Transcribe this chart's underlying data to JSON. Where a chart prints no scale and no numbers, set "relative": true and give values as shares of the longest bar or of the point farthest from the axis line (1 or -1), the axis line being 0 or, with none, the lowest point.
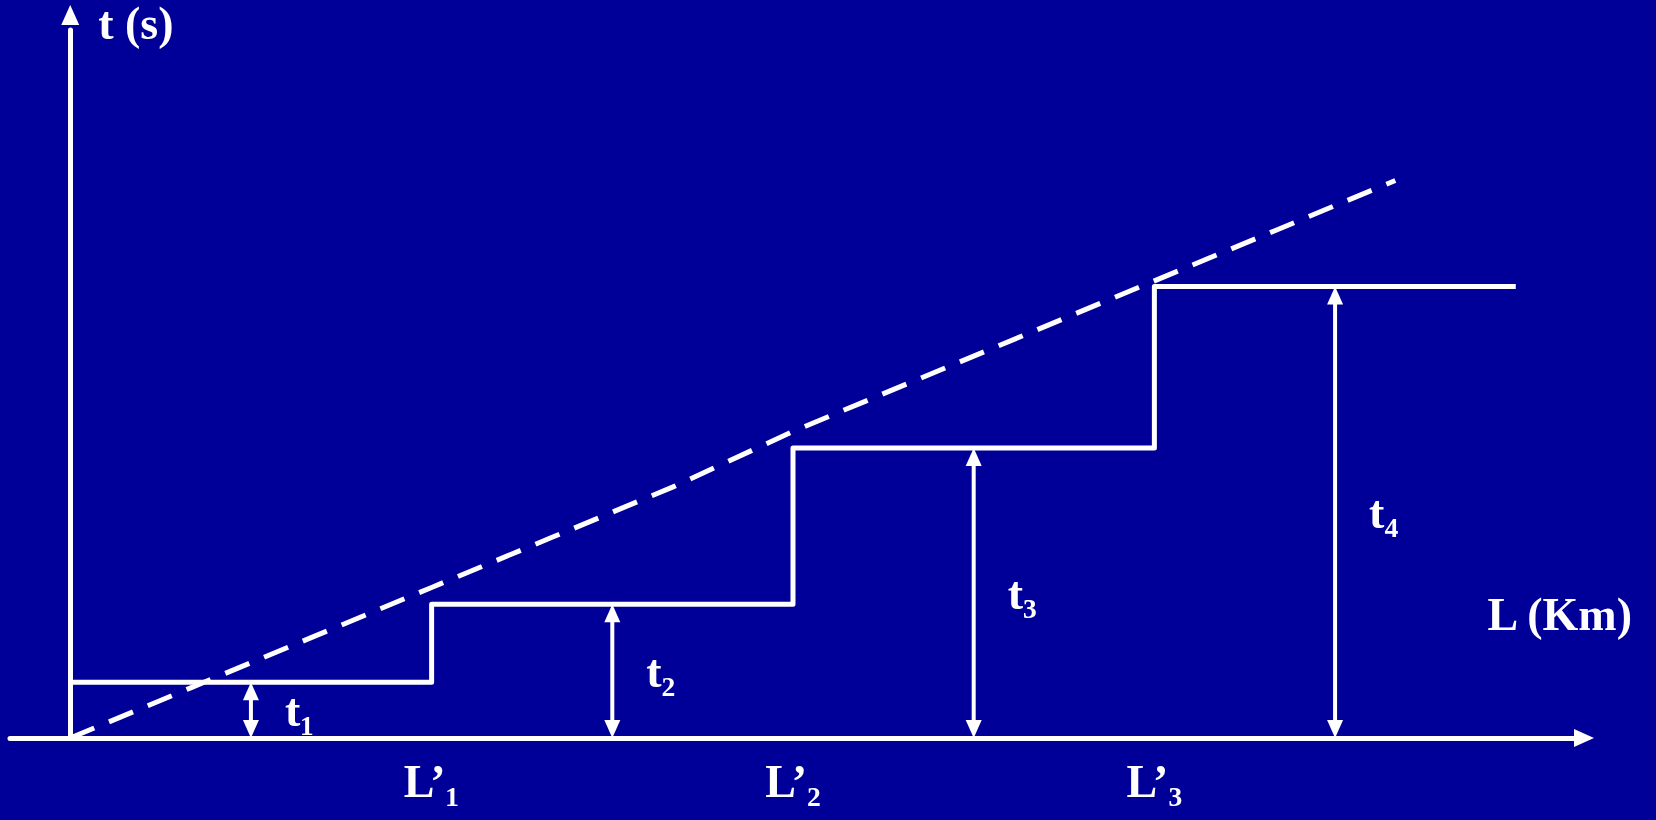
{
  "chart_data": {
    "type": "step",
    "xlabel": "L (Km)",
    "ylabel": "t (s)",
    "categories": [
      null,
      null,
      null,
      "L’₁",
      null,
      null,
      "L’₂",
      null,
      null,
      "L’₃",
      null,
      null,
      null
    ],
    "relative": true,
    "marker": "none",
    "series": [
      {
        "color": "#ffffff",
        "values": [
          0.1,
          0.1,
          0.1,
          0.24,
          0.24,
          0.24,
          0.52,
          0.52,
          0.52,
          0.81,
          0.81,
          0.81,
          0.81
        ]
      },
      {
        "type": "line",
        "color": "#ffffff",
        "line_style": "dashed",
        "values": [
          0,
          0.09,
          0.18,
          0.27,
          0.36,
          0.45,
          0.55,
          0.64,
          0.73,
          0.82,
          0.91,
          1,
          null
        ]
      }
    ],
    "annotations": [
      "t₁",
      "t₂",
      "t₃",
      "t₄"
    ]
  }
}
